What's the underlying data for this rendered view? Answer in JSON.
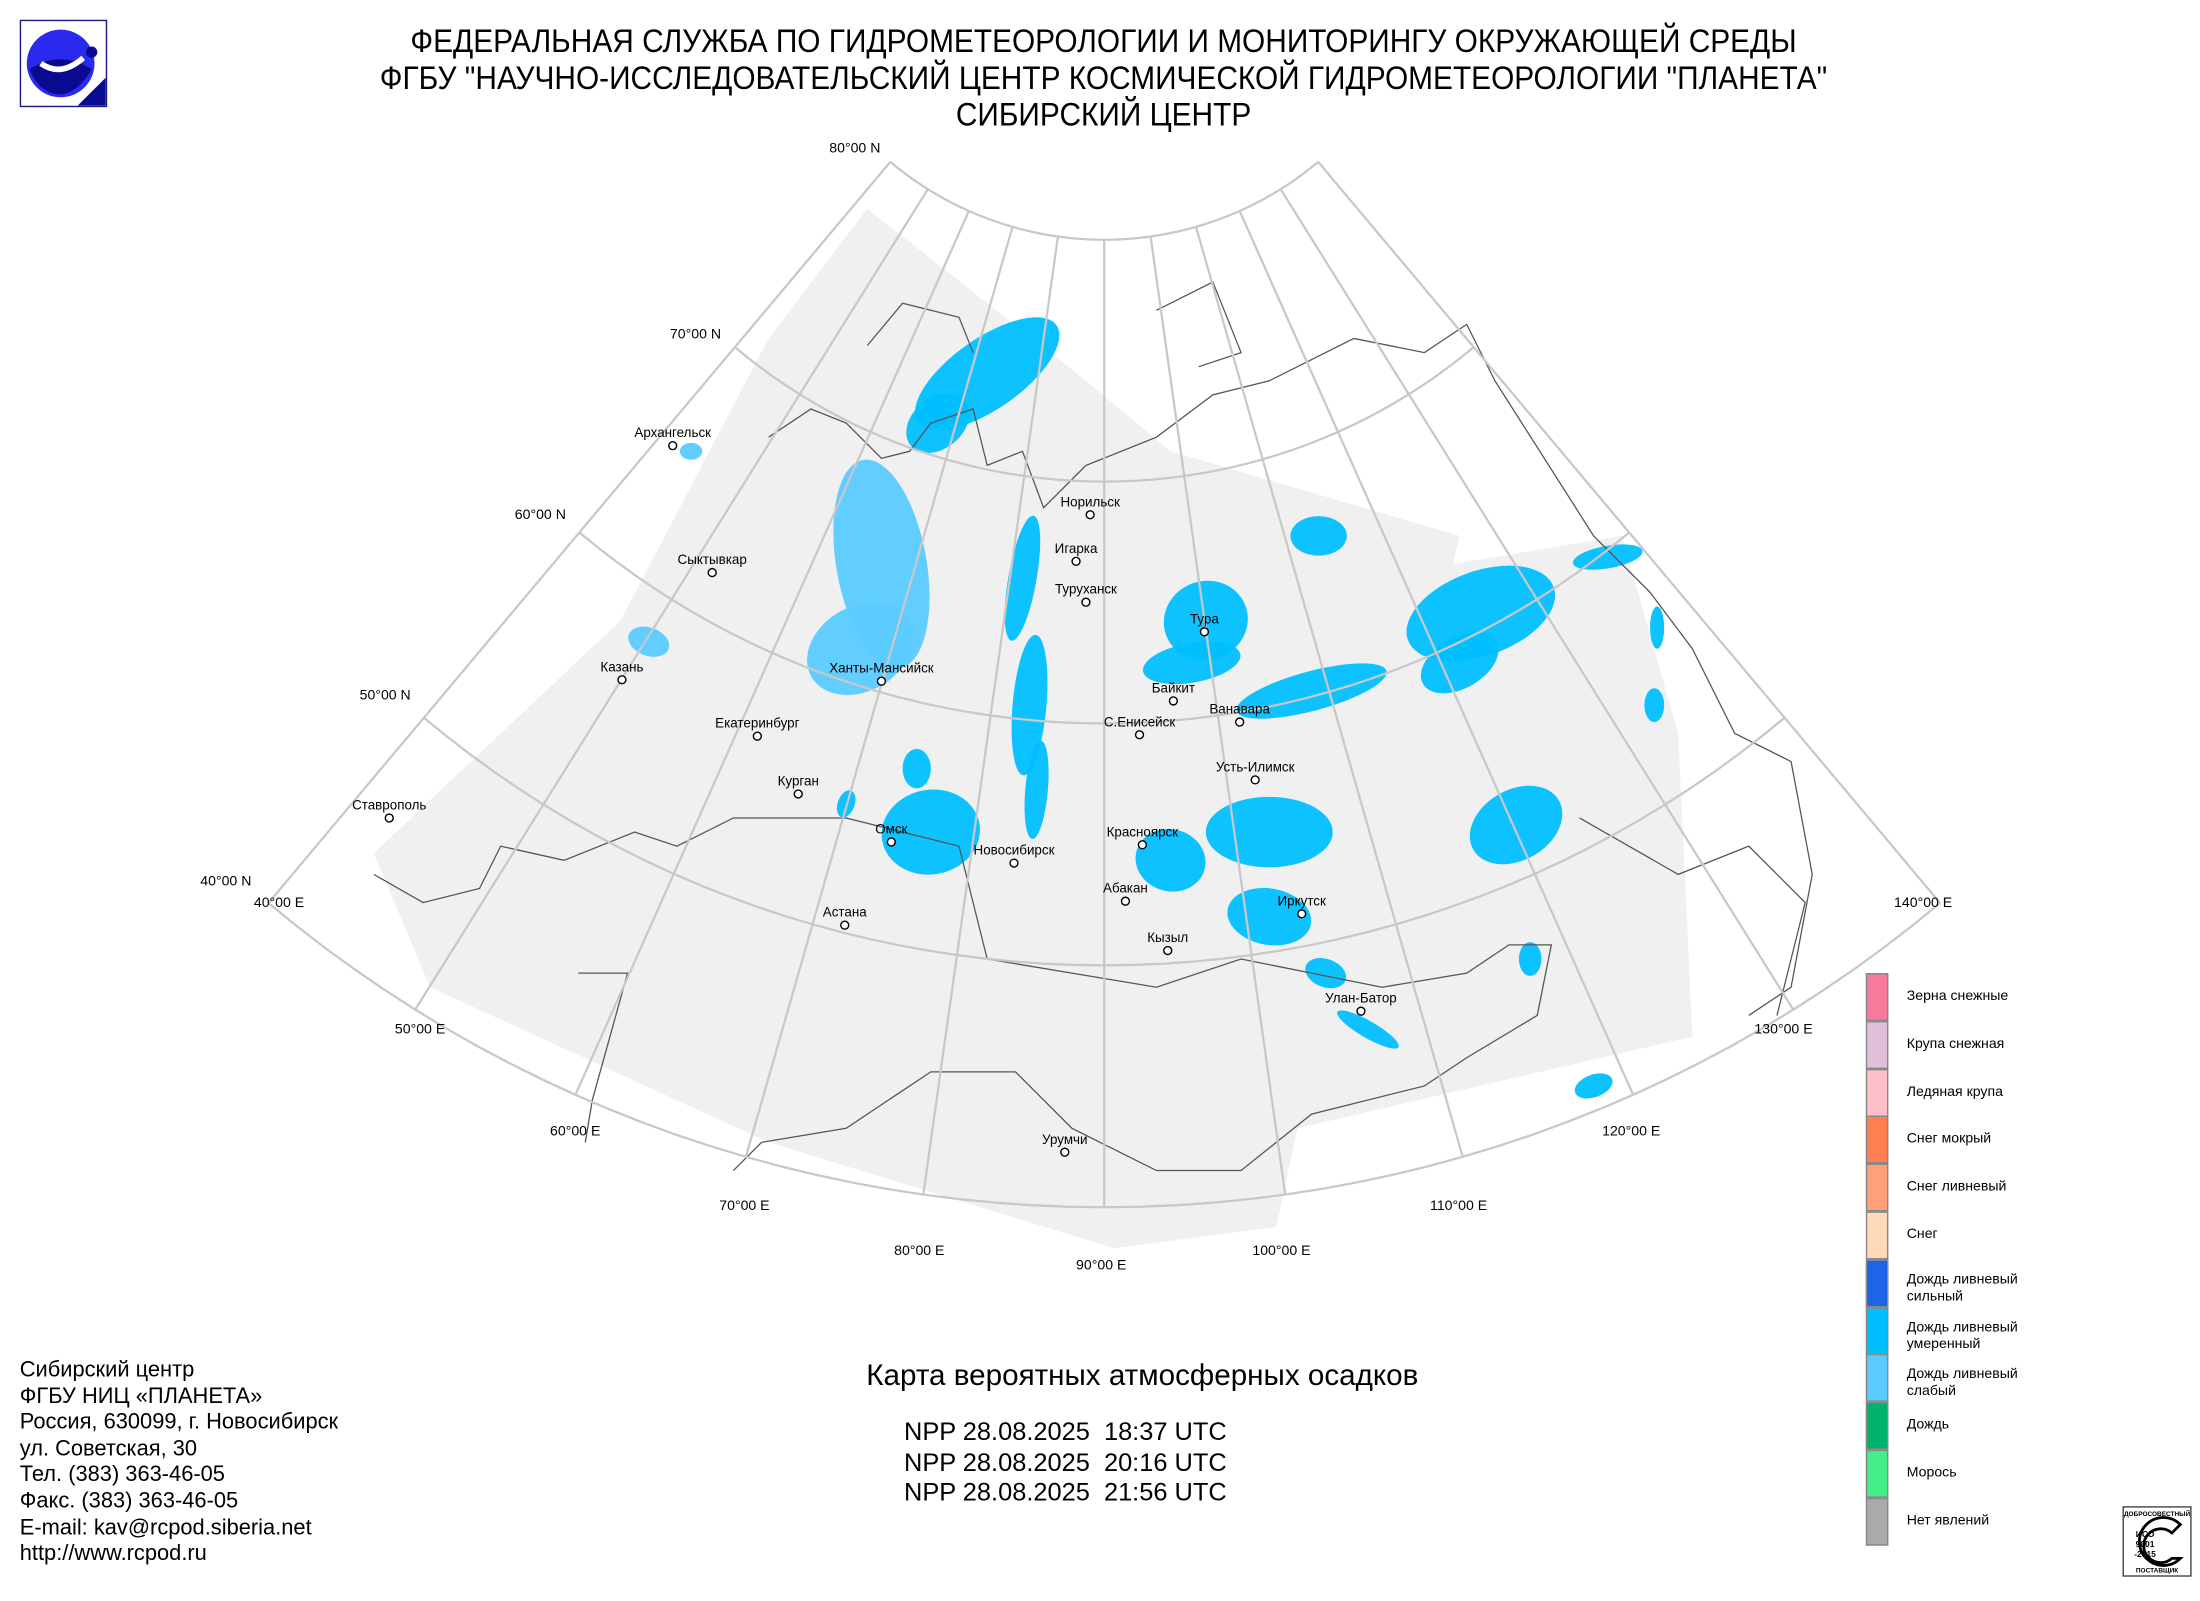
{
  "header": {
    "line1": "ФЕДЕРАЛЬНАЯ СЛУЖБА ПО ГИДРОМЕТЕОРОЛОГИИ И МОНИТОРИНГУ ОКРУЖАЮЩЕЙ СРЕДЫ",
    "line2": "ФГБУ \"НАУЧНО-ИССЛЕДОВАТЕЛЬСКИЙ ЦЕНТР КОСМИЧЕСКОЙ ГИДРОМЕТЕОРОЛОГИИ \"ПЛАНЕТА\"",
    "line3": "СИБИРСКИЙ ЦЕНТР",
    "logo_icon": "roshydromet-logo"
  },
  "map": {
    "lat_labels": [
      "80°00 N",
      "70°00 N",
      "60°00 N",
      "50°00 N",
      "40°00 N"
    ],
    "lon_labels": [
      "40°00 E",
      "50°00 E",
      "60°00 E",
      "70°00 E",
      "80°00 E",
      "90°00 E",
      "100°00 E",
      "110°00 E",
      "120°00 E",
      "130°00 E",
      "140°00 E"
    ],
    "cities": [
      "Архангельск",
      "Сыктывкар",
      "Казань",
      "Екатеринбург",
      "Курган",
      "Ставрополь",
      "Ханты-Мансийск",
      "Омск",
      "Астана",
      "Новосибирск",
      "Норильск",
      "Игарка",
      "Туруханск",
      "Тура",
      "Байкит",
      "С.Енисейск",
      "Ванавара",
      "Усть-Илимск",
      "Красноярск",
      "Абакан",
      "Кызыл",
      "Иркутск",
      "Улан-Батор",
      "Урумчи"
    ],
    "coverage_color": "#f0f0f0",
    "precip_color": "#00bfff",
    "precip_light_color": "#5acbff"
  },
  "legend": [
    {
      "label": "Зерна снежные",
      "color": "#f7799b"
    },
    {
      "label": "Крупа снежная",
      "color": "#e0bfd9"
    },
    {
      "label": "Ледяная крупа",
      "color": "#ffc0cb"
    },
    {
      "label": "Снег мокрый",
      "color": "#ff7f50"
    },
    {
      "label": "Снег ливневый",
      "color": "#ffa07a"
    },
    {
      "label": "Снег",
      "color": "#ffdab9"
    },
    {
      "label": "Дождь ливневый сильный",
      "color": "#1e64e6"
    },
    {
      "label": "Дождь ливневый умеренный",
      "color": "#00bfff"
    },
    {
      "label": "Дождь ливневый слабый",
      "color": "#5acbff"
    },
    {
      "label": "Дождь",
      "color": "#00b36b"
    },
    {
      "label": "Морось",
      "color": "#44ee88"
    },
    {
      "label": "Нет явлений",
      "color": "#aaaaaa"
    }
  ],
  "contact": [
    "Сибирский центр",
    "ФГБУ НИЦ «ПЛАНЕТА»",
    "Россия, 630099, г. Новосибирск",
    "ул. Советская, 30",
    "Тел. (383) 363-46-05",
    "Факс. (383) 363-46-05",
    "E-mail: kav@rcpod.siberia.net",
    "http://www.rcpod.ru"
  ],
  "map_title": "Карта вероятных атмосферных осадков",
  "passes": [
    "NPP 28.08.2025  18:37 UTC",
    "NPP 28.08.2025  20:16 UTC",
    "NPP 28.08.2025  21:56 UTC"
  ],
  "iso_badge": {
    "top": "ДОБРОСОВЕСТНЫЙ",
    "text1": "ИСО",
    "text2": "9001",
    "text3": "-2015",
    "bottom": "ПОСТАВЩИК"
  }
}
